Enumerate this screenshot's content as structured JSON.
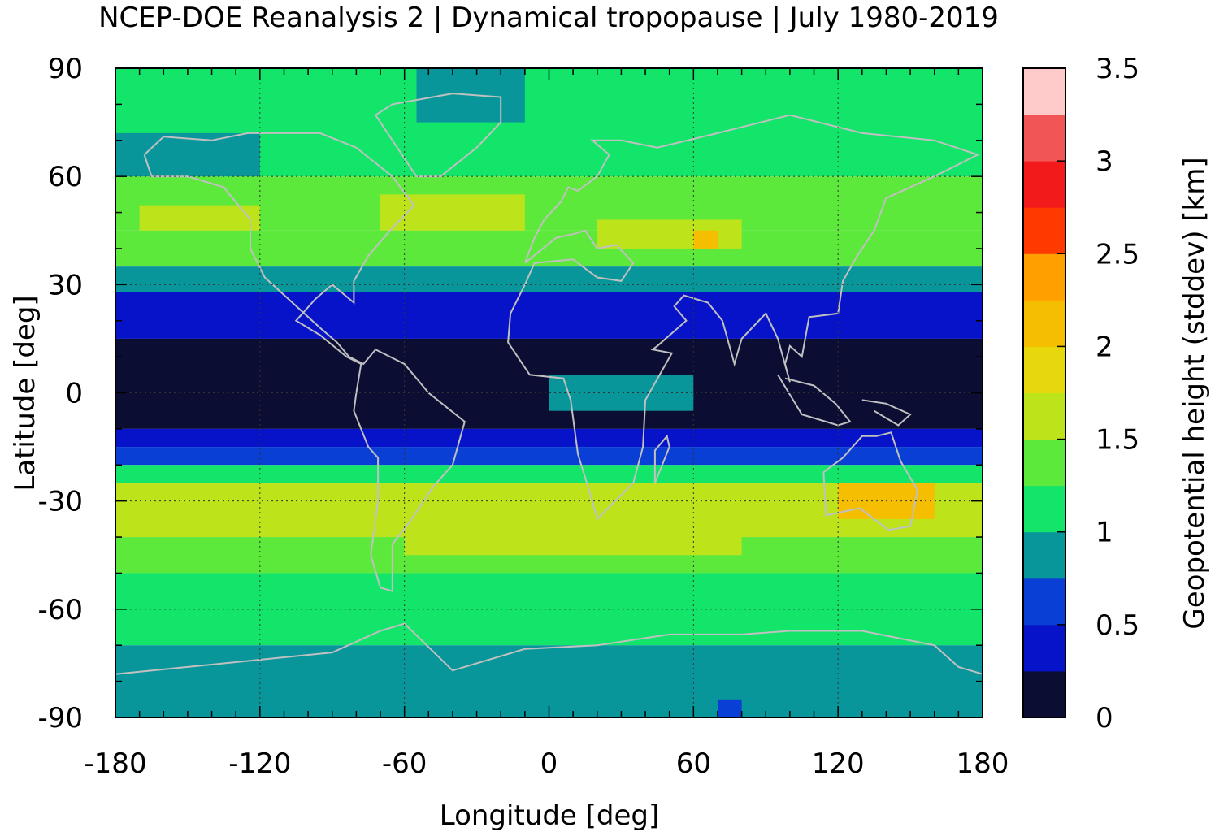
{
  "title": "NCEP-DOE Reanalysis 2 | Dynamical tropopause | July 1980-2019",
  "xlabel": "Longitude [deg]",
  "ylabel": "Latitude [deg]",
  "colorbar_label": "Geopotential height (stddev) [km]",
  "x_ticks": [
    "-180",
    "-120",
    "-60",
    "0",
    "60",
    "120",
    "180"
  ],
  "y_ticks": [
    "90",
    "60",
    "30",
    "0",
    "-30",
    "-60",
    "-90"
  ],
  "colorbar_ticks": [
    "3.5",
    "3",
    "2.5",
    "2",
    "1.5",
    "1",
    "0.5",
    "0"
  ],
  "colormap": [
    "#0b0d33",
    "#0713c9",
    "#0a3fd6",
    "#08969a",
    "#12e56a",
    "#5de83c",
    "#bde41a",
    "#e6d80c",
    "#f5be00",
    "#ffa000",
    "#ff3a00",
    "#f21a1a",
    "#f25555",
    "#ffcaca"
  ],
  "chart_data": {
    "type": "heatmap",
    "title": "NCEP-DOE Reanalysis 2 | Dynamical tropopause | July 1980-2019",
    "xlabel": "Longitude [deg]",
    "ylabel": "Latitude [deg]",
    "xlim": [
      -180,
      180
    ],
    "ylim": [
      -90,
      90
    ],
    "colorbar_label": "Geopotential height (stddev) [km]",
    "colorbar_range": [
      0,
      3.5
    ],
    "colorbar_step": 0.25,
    "grid": true,
    "legend": "colorbar-right",
    "zones": [
      {
        "lat": [
          60,
          90
        ],
        "value": 1.1
      },
      {
        "lat": [
          45,
          60
        ],
        "value": 1.4
      },
      {
        "lat": [
          35,
          45
        ],
        "value": 1.35
      },
      {
        "lat": [
          28,
          35
        ],
        "value": 0.9
      },
      {
        "lat": [
          15,
          28
        ],
        "value": 0.4
      },
      {
        "lat": [
          -10,
          15
        ],
        "value": 0.1
      },
      {
        "lat": [
          -15,
          -10
        ],
        "value": 0.35
      },
      {
        "lat": [
          -20,
          -15
        ],
        "value": 0.5
      },
      {
        "lat": [
          -25,
          -20
        ],
        "value": 1.1
      },
      {
        "lat": [
          -40,
          -25
        ],
        "value": 1.6
      },
      {
        "lat": [
          -50,
          -40
        ],
        "value": 1.3
      },
      {
        "lat": [
          -70,
          -50
        ],
        "value": 1.1
      },
      {
        "lat": [
          -90,
          -70
        ],
        "value": 0.9
      }
    ],
    "patches": [
      {
        "lon": [
          -55,
          -10
        ],
        "lat": [
          75,
          90
        ],
        "value": 0.9
      },
      {
        "lon": [
          -180,
          -120
        ],
        "lat": [
          60,
          72
        ],
        "value": 0.9
      },
      {
        "lon": [
          0,
          60
        ],
        "lat": [
          -5,
          5
        ],
        "value": 0.9
      },
      {
        "lon": [
          20,
          80
        ],
        "lat": [
          40,
          48
        ],
        "value": 1.7
      },
      {
        "lon": [
          60,
          70
        ],
        "lat": [
          40,
          45
        ],
        "value": 2.0
      },
      {
        "lon": [
          -70,
          -10
        ],
        "lat": [
          45,
          55
        ],
        "value": 1.6
      },
      {
        "lon": [
          -170,
          -120
        ],
        "lat": [
          45,
          52
        ],
        "value": 1.6
      },
      {
        "lon": [
          120,
          160
        ],
        "lat": [
          -35,
          -25
        ],
        "value": 2.0
      },
      {
        "lon": [
          -60,
          80
        ],
        "lat": [
          -45,
          -28
        ],
        "value": 1.65
      },
      {
        "lon": [
          70,
          80
        ],
        "lat": [
          -90,
          -85
        ],
        "value": 0.5
      }
    ]
  }
}
